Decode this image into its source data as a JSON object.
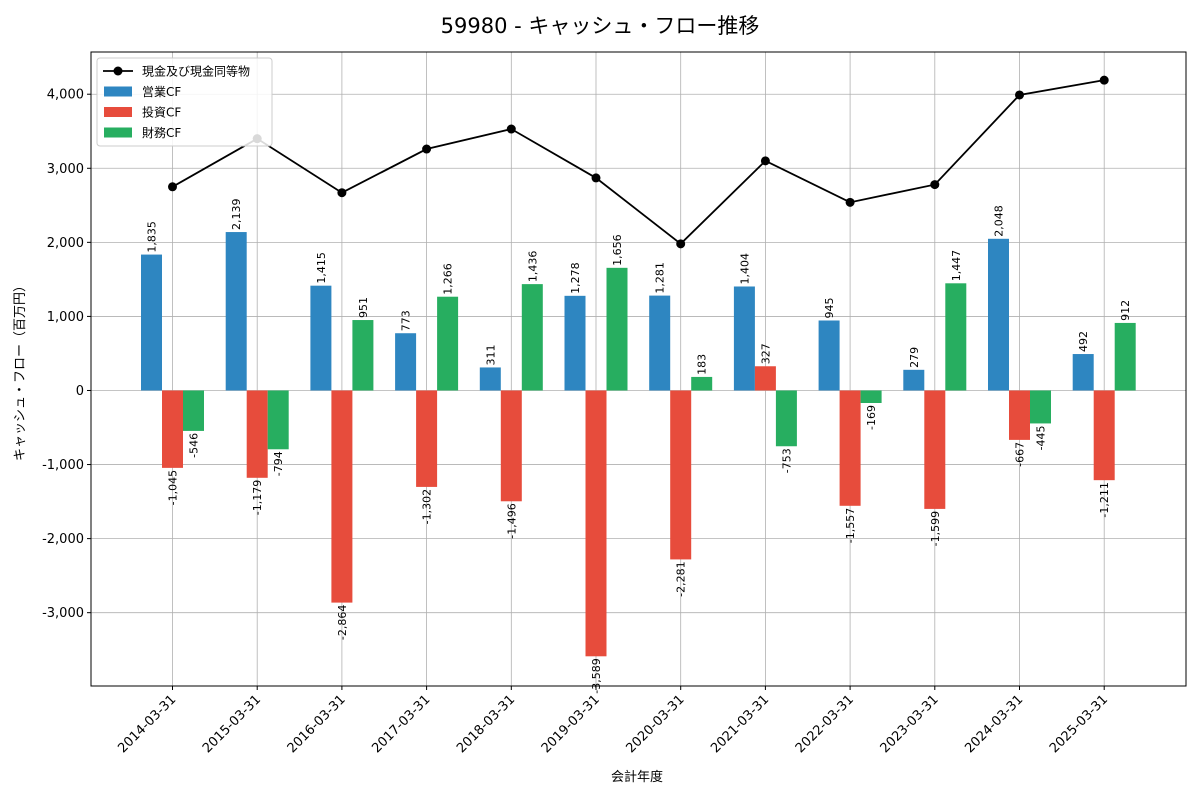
{
  "chart_data": {
    "type": "bar",
    "title": "59980 - キャッシュ・フロー推移",
    "xlabel": "会計年度",
    "ylabel": "キャッシュ・フロー（百万円）",
    "categories": [
      "2014-03-31",
      "2015-03-31",
      "2016-03-31",
      "2017-03-31",
      "2018-03-31",
      "2019-03-31",
      "2020-03-31",
      "2021-03-31",
      "2022-03-31",
      "2023-03-31",
      "2024-03-31",
      "2025-03-31"
    ],
    "ylim": [
      -3990,
      4570
    ],
    "yticks": [
      -3000,
      -2000,
      -1000,
      0,
      1000,
      2000,
      3000,
      4000
    ],
    "ytick_labels": [
      "-3,000",
      "-2,000",
      "-1,000",
      "0",
      "1,000",
      "2,000",
      "3,000",
      "4,000"
    ],
    "grid": true,
    "legend_position": "top-left",
    "series": [
      {
        "name": "営業CF",
        "kind": "bar",
        "color": "#2e86c1",
        "values": [
          1835,
          2139,
          1415,
          773,
          311,
          1278,
          1281,
          1404,
          945,
          279,
          2048,
          492
        ],
        "labels": [
          "1,835",
          "2,139",
          "1,415",
          "773",
          "311",
          "1,278",
          "1,281",
          "1,404",
          "945",
          "279",
          "2,048",
          "492"
        ]
      },
      {
        "name": "投資CF",
        "kind": "bar",
        "color": "#e74c3c",
        "values": [
          -1045,
          -1179,
          -2864,
          -1302,
          -1496,
          -3589,
          -2281,
          327,
          -1557,
          -1599,
          -667,
          -1211
        ],
        "labels": [
          "-1,045",
          "-1,179",
          "-2,864",
          "-1,302",
          "-1,496",
          "-3,589",
          "-2,281",
          "327",
          "-1,557",
          "-1,599",
          "-667",
          "-1,211"
        ]
      },
      {
        "name": "財務CF",
        "kind": "bar",
        "color": "#27ae60",
        "values": [
          -546,
          -794,
          951,
          1266,
          1436,
          1656,
          183,
          -753,
          -169,
          1447,
          -445,
          912
        ],
        "labels": [
          "-546",
          "-794",
          "951",
          "1,266",
          "1,436",
          "1,656",
          "183",
          "-753",
          "-169",
          "1,447",
          "-445",
          "912"
        ]
      },
      {
        "name": "現金及び現金同等物",
        "kind": "line",
        "color": "#000000",
        "values": [
          2750,
          3400,
          2670,
          3260,
          3530,
          2870,
          1980,
          3100,
          2540,
          2780,
          3990,
          4190
        ]
      }
    ]
  }
}
